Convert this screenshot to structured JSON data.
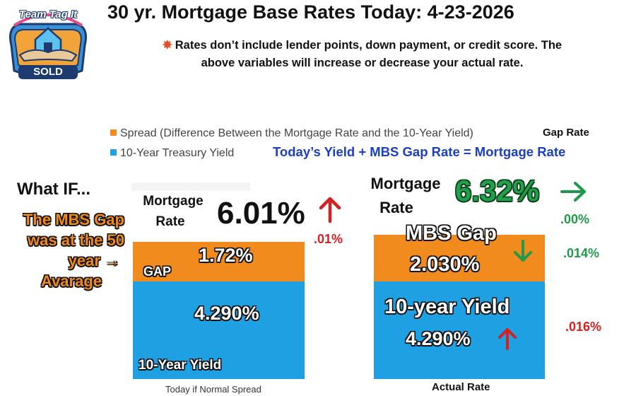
{
  "logo": {
    "top_text": "Team Tag It",
    "bottom_text": "SOLD"
  },
  "header": {
    "title": "30 yr. Mortgage Base Rates Today: 4-23-2026",
    "subtitle_line1": "Rates don’t include lender points, down payment, or credit score. The",
    "subtitle_line2": "above variables will increase or decrease your actual rate.",
    "spark_icon": "collision-icon"
  },
  "colors": {
    "spread": "#f28b1e",
    "treasury": "#1fa0e3",
    "accent_blue_text": "#1a3fc4",
    "down_green": "#1f9a4a",
    "up_red": "#d42020"
  },
  "legend": {
    "spread_label": "Spread (Difference Between the Mortgage Rate and the 10-Year Yield)",
    "treasury_label": "10-Year Treasury Yield",
    "gap_rate_label": "Gap Rate",
    "equation": "Today’s  Yield +  MBS Gap Rate = Mortgage Rate"
  },
  "what_if": {
    "heading": "What IF...",
    "lines": [
      "The MBS Gap",
      "was at the 50",
      "year  →",
      "Avarage"
    ]
  },
  "chart_data": {
    "type": "bar",
    "stacked": true,
    "categories": [
      "Today if Normal Spread",
      "Actual Rate"
    ],
    "series": [
      {
        "name": "10-Year Treasury Yield",
        "values": [
          4.29,
          4.29
        ]
      },
      {
        "name": "Spread (Difference Between the Mortgage Rate and the 10-Year Yield)",
        "values": [
          1.72,
          2.03
        ]
      }
    ],
    "ylabel": "",
    "legend": "top-left",
    "grid": false
  },
  "bars": {
    "normal": {
      "category_label": "Today if Normal Spread",
      "gap_tag": "GAP",
      "gap_value": "1.72%",
      "yield_value": "4.290%",
      "yield_tag": "10-Year Yield",
      "mortgage_label_line1": "Mortgage",
      "mortgage_label_line2": "Rate",
      "mortgage_rate": "6.01%",
      "change": ".01%",
      "change_direction": "up"
    },
    "actual": {
      "category_label": "Actual Rate",
      "gap_tag": "MBS Gap",
      "gap_value": "2.030%",
      "gap_change": ".014%",
      "gap_change_direction": "down",
      "yield_tag": "10-year Yield",
      "yield_value": "4.290%",
      "yield_change": ".016%",
      "yield_change_direction": "up",
      "mortgage_label_line1": "Mortgage",
      "mortgage_label_line2": "Rate",
      "mortgage_rate": "6.32%",
      "mortgage_change": ".00%",
      "mortgage_change_direction": "flat"
    }
  }
}
